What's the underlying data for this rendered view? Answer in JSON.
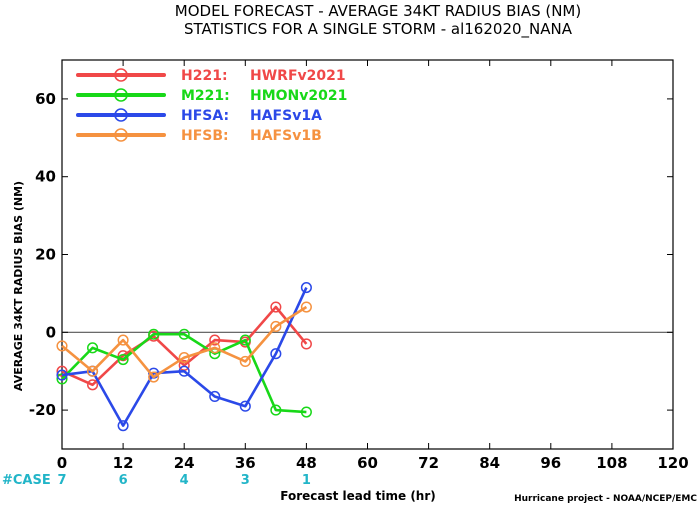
{
  "chart_data": {
    "type": "line",
    "title": "MODEL FORECAST - AVERAGE 34KT RADIUS BIAS (NM)",
    "subtitle": "STATISTICS FOR A SINGLE STORM - al162020_NANA",
    "xlabel": "Forecast lead time (hr)",
    "ylabel": "AVERAGE 34KT RADIUS BIAS (NM)",
    "xlim": [
      0,
      120
    ],
    "ylim": [
      -30,
      70
    ],
    "xticks": [
      0,
      12,
      24,
      36,
      48,
      60,
      72,
      84,
      96,
      108,
      120
    ],
    "yticks": [
      -20,
      0,
      20,
      40,
      60
    ],
    "zero_line": true,
    "grid": false,
    "legend_position": "top-left",
    "series": [
      {
        "name": "H221: HWRFv2021",
        "label_code": "H221:",
        "label_model": "HWRFv2021",
        "color": "#f04848",
        "x": [
          0,
          6,
          12,
          18,
          24,
          30,
          36,
          42,
          48
        ],
        "y": [
          -10,
          -13.5,
          -6,
          -1,
          -8.5,
          -2,
          -2.5,
          6.5,
          -3
        ]
      },
      {
        "name": "M221: HMONv2021",
        "label_code": "M221:",
        "label_model": "HMONv2021",
        "color": "#18d818",
        "x": [
          0,
          6,
          12,
          18,
          24,
          30,
          36,
          42,
          48
        ],
        "y": [
          -12,
          -4,
          -7,
          -0.5,
          -0.5,
          -5.5,
          -2,
          -20,
          -20.5
        ]
      },
      {
        "name": "HFSA: HAFSv1A",
        "label_code": "HFSA:",
        "label_model": "HAFSv1A",
        "color": "#2b49e8",
        "x": [
          0,
          6,
          12,
          18,
          24,
          30,
          36,
          42,
          48
        ],
        "y": [
          -11,
          -10,
          -24,
          -10.5,
          -10,
          -16.5,
          -19,
          -5.5,
          11.5
        ]
      },
      {
        "name": "HFSB: HAFSv1B",
        "label_code": "HFSB:",
        "label_model": "HAFSv1B",
        "color": "#f59240",
        "x": [
          0,
          6,
          12,
          18,
          24,
          30,
          36,
          42,
          48
        ],
        "y": [
          -3.5,
          -10,
          -2,
          -11.5,
          -6.5,
          -4,
          -7.5,
          1.5,
          6.5
        ]
      }
    ],
    "cases": {
      "label": "#CASE",
      "x": [
        0,
        12,
        24,
        36,
        48
      ],
      "values": [
        "7",
        "6",
        "4",
        "3",
        "1"
      ]
    },
    "credit": "Hurricane project - NOAA/NCEP/EMC"
  }
}
